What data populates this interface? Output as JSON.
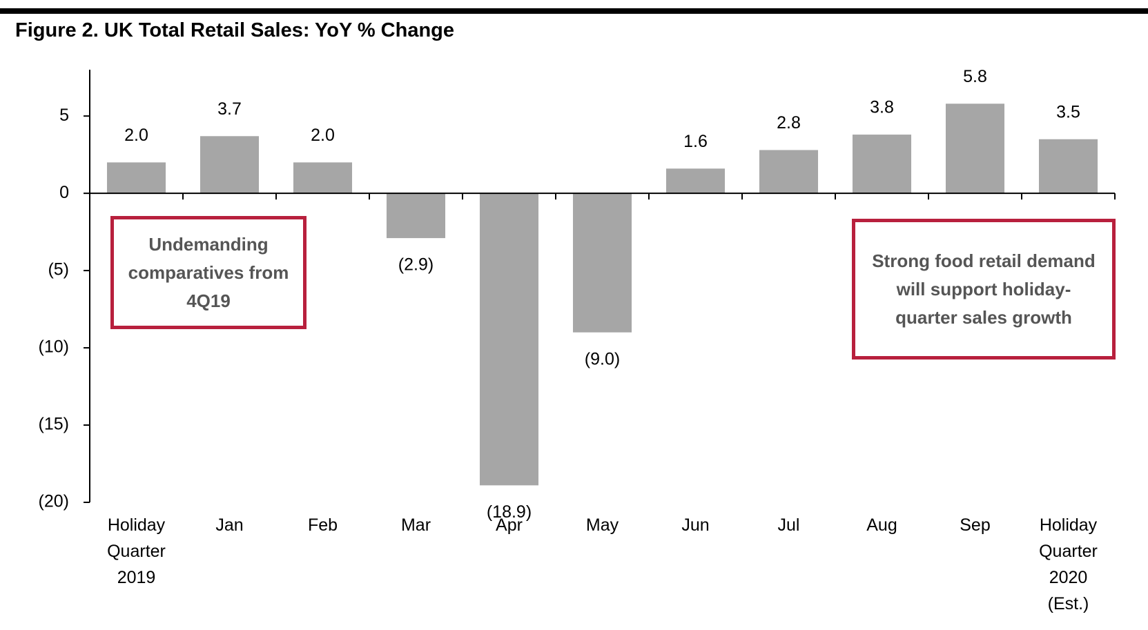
{
  "chart_data": {
    "type": "bar",
    "title": "Figure 2. UK Total Retail Sales: YoY % Change",
    "categories": [
      "Holiday Quarter 2019",
      "Jan",
      "Feb",
      "Mar",
      "Apr",
      "May",
      "Jun",
      "Jul",
      "Aug",
      "Sep",
      "Holiday Quarter 2020 (Est.)"
    ],
    "values": [
      2.0,
      3.7,
      2.0,
      -2.9,
      -18.9,
      -9.0,
      1.6,
      2.8,
      3.8,
      5.8,
      3.5
    ],
    "value_labels": [
      "2.0",
      "3.7",
      "2.0",
      "(2.9)",
      "(18.9)",
      "(9.0)",
      "1.6",
      "2.8",
      "3.8",
      "5.8",
      "3.5"
    ],
    "color": "#a6a6a6",
    "ylim": [
      -20,
      8
    ],
    "yticks": [
      5,
      0,
      {
        "value": -5,
        "label": "(5)"
      },
      {
        "value": -10,
        "label": "(10)"
      },
      {
        "value": -15,
        "label": "(15)"
      },
      {
        "value": -20,
        "label": "(20)"
      }
    ],
    "annotations": [
      "Undemanding comparatives from 4Q19",
      "Strong food retail demand will support holiday-quarter sales growth"
    ]
  }
}
